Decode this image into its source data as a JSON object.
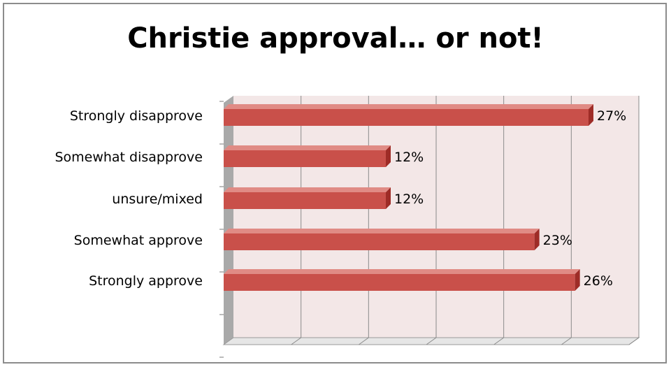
{
  "chart_data": {
    "type": "bar",
    "orientation": "horizontal",
    "style": "3d",
    "title": "Christie approval… or not!",
    "categories": [
      "Strongly disapprove",
      "Somewhat disapprove",
      "unsure/mixed",
      "Somewhat approve",
      "Strongly approve"
    ],
    "values": [
      27,
      12,
      12,
      23,
      26
    ],
    "value_labels": [
      "27%",
      "12%",
      "12%",
      "23%",
      "26%"
    ],
    "xlim": [
      0,
      30
    ],
    "x_gridlines": [
      5,
      10,
      15,
      20,
      25,
      30
    ],
    "grid": true,
    "legend": "none",
    "colors": {
      "bar_front": "#c9504a",
      "bar_top": "#e08b85",
      "bar_end": "#9e2c27",
      "wall": "#f3e7e7",
      "side_wall": "#a9a9a9",
      "floor": "#e6e6e6",
      "gridline": "#8a8a8a"
    }
  }
}
